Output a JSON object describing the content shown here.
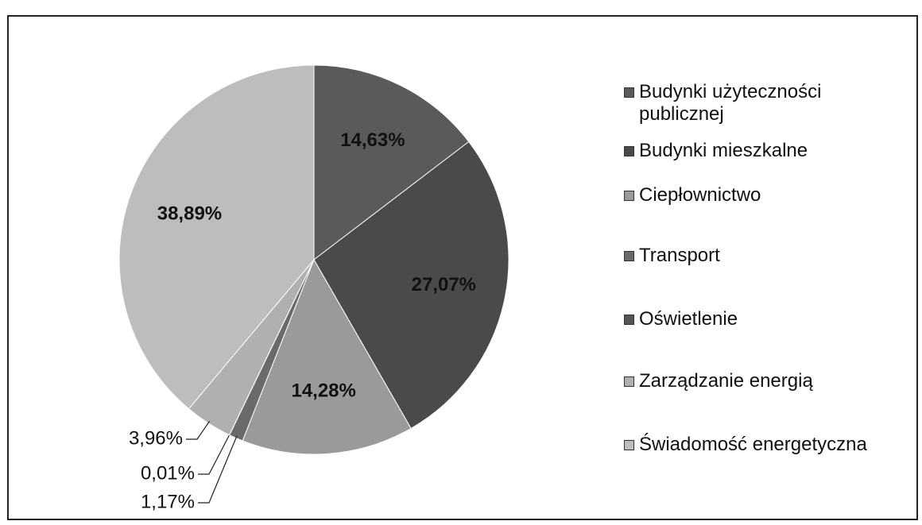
{
  "chart_data": {
    "type": "pie",
    "categories": [
      "Budynki użyteczności publicznej",
      "Budynki mieszkalne",
      "Ciepłownictwo",
      "Transport",
      "Oświetlenie",
      "Zarządzanie energią",
      "Świadomość energetyczna"
    ],
    "values": [
      14.63,
      27.07,
      14.28,
      1.17,
      0.01,
      3.96,
      38.89
    ],
    "value_labels": [
      "14,63%",
      "27,07%",
      "14,28%",
      "1,17%",
      "0,01%",
      "3,96%",
      "38,89%"
    ],
    "colors": [
      "#5a5a5a",
      "#4a4a4a",
      "#9a9a9a",
      "#6a6a6a",
      "#555555",
      "#b0b0b0",
      "#bdbdbd"
    ],
    "legend": "right"
  }
}
